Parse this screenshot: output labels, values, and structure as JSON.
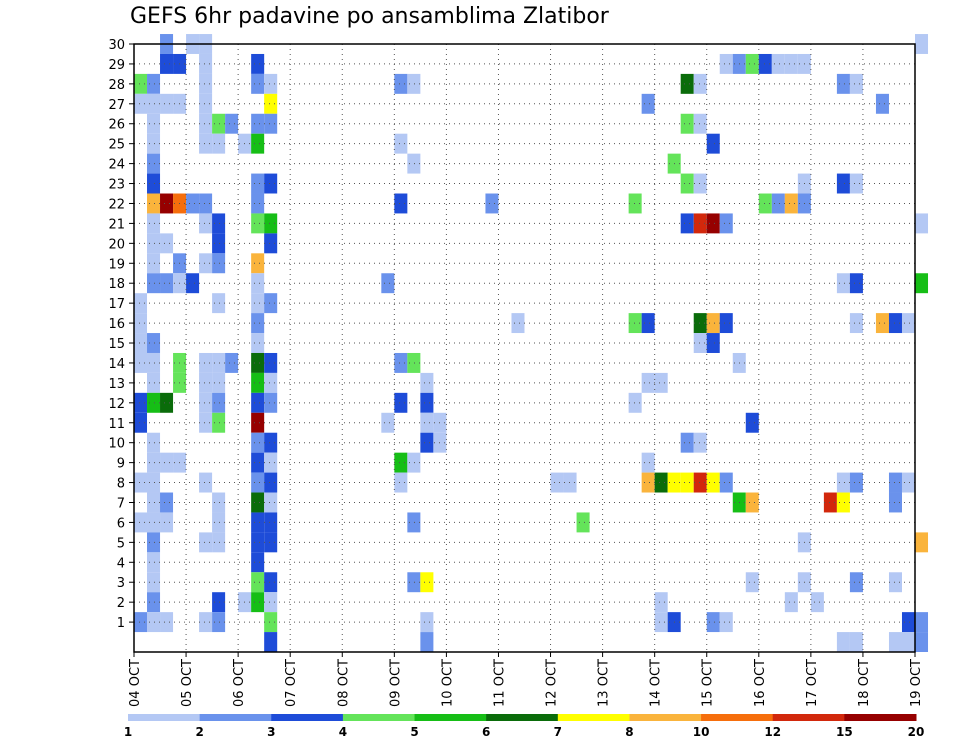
{
  "chart_data": {
    "type": "heatmap",
    "title": "GEFS 6hr padavine po ansamblima Zlatibor",
    "xlabel": "",
    "ylabel": "",
    "x_tick_labels": [
      "04 OCT",
      "05 OCT",
      "06 OCT",
      "07 OCT",
      "08 OCT",
      "09 OCT",
      "10 OCT",
      "11 OCT",
      "12 OCT",
      "13 OCT",
      "14 OCT",
      "15 OCT",
      "16 OCT",
      "17 OCT",
      "18 OCT",
      "19 OCT"
    ],
    "y_tick_labels": [
      "1",
      "2",
      "3",
      "4",
      "5",
      "6",
      "7",
      "8",
      "9",
      "10",
      "11",
      "12",
      "13",
      "14",
      "15",
      "16",
      "17",
      "18",
      "19",
      "20",
      "21",
      "22",
      "23",
      "24",
      "25",
      "26",
      "27",
      "28",
      "29",
      "30"
    ],
    "grid": true,
    "color_scale": {
      "levels": [
        "1",
        "2",
        "3",
        "4",
        "5",
        "6",
        "7",
        "8",
        "10",
        "12",
        "15",
        "20"
      ],
      "colors": [
        "#b4c8f4",
        "#6a92ec",
        "#1e4cd8",
        "#64e45a",
        "#16be16",
        "#0a6c0a",
        "#ffff00",
        "#fab43c",
        "#f66e0c",
        "#d2280c",
        "#960000"
      ]
    },
    "cells": [
      [
        30,
        2,
        1
      ],
      [
        30,
        4,
        0
      ],
      [
        30,
        5,
        0
      ],
      [
        30,
        60,
        0
      ],
      [
        29,
        2,
        2
      ],
      [
        29,
        3,
        2
      ],
      [
        29,
        5,
        0
      ],
      [
        29,
        9,
        2
      ],
      [
        29,
        45,
        0
      ],
      [
        29,
        46,
        1
      ],
      [
        29,
        47,
        3
      ],
      [
        29,
        48,
        2
      ],
      [
        29,
        49,
        0
      ],
      [
        29,
        50,
        0
      ],
      [
        29,
        51,
        0
      ],
      [
        28,
        0,
        3
      ],
      [
        28,
        1,
        1
      ],
      [
        28,
        5,
        0
      ],
      [
        28,
        9,
        1
      ],
      [
        28,
        10,
        0
      ],
      [
        28,
        20,
        1
      ],
      [
        28,
        21,
        0
      ],
      [
        28,
        42,
        5
      ],
      [
        28,
        43,
        0
      ],
      [
        28,
        54,
        1
      ],
      [
        28,
        55,
        0
      ],
      [
        27,
        0,
        0
      ],
      [
        27,
        1,
        0
      ],
      [
        27,
        2,
        0
      ],
      [
        27,
        3,
        0
      ],
      [
        27,
        5,
        0
      ],
      [
        27,
        10,
        6
      ],
      [
        27,
        39,
        1
      ],
      [
        27,
        57,
        1
      ],
      [
        26,
        1,
        0
      ],
      [
        26,
        5,
        0
      ],
      [
        26,
        6,
        3
      ],
      [
        26,
        7,
        1
      ],
      [
        26,
        9,
        1
      ],
      [
        26,
        10,
        1
      ],
      [
        26,
        42,
        3
      ],
      [
        26,
        43,
        0
      ],
      [
        25,
        1,
        0
      ],
      [
        25,
        5,
        0
      ],
      [
        25,
        6,
        0
      ],
      [
        25,
        8,
        0
      ],
      [
        25,
        9,
        4
      ],
      [
        25,
        20,
        0
      ],
      [
        25,
        44,
        2
      ],
      [
        24,
        1,
        1
      ],
      [
        24,
        21,
        0
      ],
      [
        24,
        41,
        3
      ],
      [
        23,
        1,
        2
      ],
      [
        23,
        9,
        1
      ],
      [
        23,
        10,
        2
      ],
      [
        23,
        42,
        3
      ],
      [
        23,
        43,
        0
      ],
      [
        23,
        51,
        0
      ],
      [
        23,
        54,
        2
      ],
      [
        23,
        55,
        0
      ],
      [
        22,
        1,
        7
      ],
      [
        22,
        2,
        10
      ],
      [
        22,
        3,
        8
      ],
      [
        22,
        4,
        1
      ],
      [
        22,
        5,
        1
      ],
      [
        22,
        9,
        1
      ],
      [
        22,
        20,
        2
      ],
      [
        22,
        27,
        1
      ],
      [
        22,
        38,
        3
      ],
      [
        22,
        48,
        3
      ],
      [
        22,
        49,
        1
      ],
      [
        22,
        50,
        7
      ],
      [
        22,
        51,
        1
      ],
      [
        21,
        1,
        0
      ],
      [
        21,
        5,
        0
      ],
      [
        21,
        6,
        2
      ],
      [
        21,
        9,
        3
      ],
      [
        21,
        10,
        4
      ],
      [
        21,
        42,
        2
      ],
      [
        21,
        43,
        9
      ],
      [
        21,
        44,
        10
      ],
      [
        21,
        45,
        1
      ],
      [
        21,
        60,
        0
      ],
      [
        20,
        1,
        0
      ],
      [
        20,
        2,
        0
      ],
      [
        20,
        6,
        2
      ],
      [
        20,
        10,
        2
      ],
      [
        19,
        1,
        0
      ],
      [
        19,
        3,
        1
      ],
      [
        19,
        5,
        0
      ],
      [
        19,
        6,
        1
      ],
      [
        19,
        9,
        7
      ],
      [
        18,
        1,
        1
      ],
      [
        18,
        2,
        1
      ],
      [
        18,
        3,
        0
      ],
      [
        18,
        4,
        2
      ],
      [
        18,
        9,
        0
      ],
      [
        18,
        19,
        1
      ],
      [
        18,
        54,
        0
      ],
      [
        18,
        55,
        2
      ],
      [
        18,
        60,
        4
      ],
      [
        17,
        0,
        0
      ],
      [
        17,
        6,
        0
      ],
      [
        17,
        9,
        0
      ],
      [
        17,
        10,
        1
      ],
      [
        16,
        0,
        0
      ],
      [
        16,
        9,
        1
      ],
      [
        16,
        29,
        0
      ],
      [
        16,
        38,
        3
      ],
      [
        16,
        39,
        2
      ],
      [
        16,
        43,
        5
      ],
      [
        16,
        44,
        7
      ],
      [
        16,
        45,
        2
      ],
      [
        16,
        55,
        0
      ],
      [
        16,
        57,
        7
      ],
      [
        16,
        58,
        2
      ],
      [
        16,
        59,
        0
      ],
      [
        15,
        0,
        0
      ],
      [
        15,
        1,
        1
      ],
      [
        15,
        9,
        0
      ],
      [
        15,
        43,
        0
      ],
      [
        15,
        44,
        2
      ],
      [
        14,
        0,
        0
      ],
      [
        14,
        1,
        0
      ],
      [
        14,
        3,
        3
      ],
      [
        14,
        5,
        0
      ],
      [
        14,
        6,
        0
      ],
      [
        14,
        7,
        1
      ],
      [
        14,
        9,
        5
      ],
      [
        14,
        10,
        2
      ],
      [
        14,
        20,
        1
      ],
      [
        14,
        21,
        3
      ],
      [
        14,
        46,
        0
      ],
      [
        13,
        1,
        0
      ],
      [
        13,
        3,
        3
      ],
      [
        13,
        5,
        0
      ],
      [
        13,
        6,
        0
      ],
      [
        13,
        9,
        4
      ],
      [
        13,
        10,
        0
      ],
      [
        13,
        22,
        0
      ],
      [
        13,
        39,
        0
      ],
      [
        13,
        40,
        0
      ],
      [
        12,
        0,
        2
      ],
      [
        12,
        1,
        4
      ],
      [
        12,
        2,
        5
      ],
      [
        12,
        5,
        0
      ],
      [
        12,
        6,
        1
      ],
      [
        12,
        9,
        2
      ],
      [
        12,
        10,
        1
      ],
      [
        12,
        20,
        2
      ],
      [
        12,
        22,
        2
      ],
      [
        12,
        38,
        0
      ],
      [
        11,
        0,
        2
      ],
      [
        11,
        5,
        0
      ],
      [
        11,
        6,
        3
      ],
      [
        11,
        9,
        10
      ],
      [
        11,
        19,
        0
      ],
      [
        11,
        22,
        0
      ],
      [
        11,
        23,
        0
      ],
      [
        11,
        47,
        2
      ],
      [
        10,
        1,
        0
      ],
      [
        10,
        9,
        1
      ],
      [
        10,
        10,
        2
      ],
      [
        10,
        22,
        2
      ],
      [
        10,
        23,
        0
      ],
      [
        10,
        42,
        1
      ],
      [
        10,
        43,
        0
      ],
      [
        9,
        1,
        0
      ],
      [
        9,
        2,
        0
      ],
      [
        9,
        3,
        0
      ],
      [
        9,
        9,
        2
      ],
      [
        9,
        10,
        0
      ],
      [
        9,
        20,
        4
      ],
      [
        9,
        21,
        0
      ],
      [
        9,
        39,
        0
      ],
      [
        8,
        0,
        0
      ],
      [
        8,
        1,
        0
      ],
      [
        8,
        5,
        0
      ],
      [
        8,
        9,
        1
      ],
      [
        8,
        10,
        2
      ],
      [
        8,
        20,
        0
      ],
      [
        8,
        32,
        0
      ],
      [
        8,
        33,
        0
      ],
      [
        8,
        39,
        7
      ],
      [
        8,
        40,
        5
      ],
      [
        8,
        41,
        6
      ],
      [
        8,
        42,
        6
      ],
      [
        8,
        43,
        9
      ],
      [
        8,
        44,
        6
      ],
      [
        8,
        45,
        1
      ],
      [
        8,
        54,
        0
      ],
      [
        8,
        55,
        1
      ],
      [
        8,
        58,
        1
      ],
      [
        8,
        59,
        0
      ],
      [
        7,
        1,
        0
      ],
      [
        7,
        2,
        1
      ],
      [
        7,
        6,
        0
      ],
      [
        7,
        9,
        5
      ],
      [
        7,
        10,
        0
      ],
      [
        7,
        46,
        4
      ],
      [
        7,
        47,
        7
      ],
      [
        7,
        53,
        9
      ],
      [
        7,
        54,
        6
      ],
      [
        7,
        58,
        1
      ],
      [
        6,
        0,
        0
      ],
      [
        6,
        1,
        0
      ],
      [
        6,
        2,
        0
      ],
      [
        6,
        6,
        0
      ],
      [
        6,
        9,
        2
      ],
      [
        6,
        10,
        2
      ],
      [
        6,
        21,
        1
      ],
      [
        6,
        34,
        3
      ],
      [
        5,
        1,
        1
      ],
      [
        5,
        5,
        0
      ],
      [
        5,
        6,
        0
      ],
      [
        5,
        9,
        2
      ],
      [
        5,
        10,
        2
      ],
      [
        5,
        51,
        0
      ],
      [
        5,
        60,
        7
      ],
      [
        4,
        1,
        0
      ],
      [
        4,
        9,
        2
      ],
      [
        3,
        1,
        0
      ],
      [
        3,
        9,
        3
      ],
      [
        3,
        10,
        2
      ],
      [
        3,
        21,
        1
      ],
      [
        3,
        22,
        6
      ],
      [
        3,
        47,
        0
      ],
      [
        3,
        51,
        0
      ],
      [
        3,
        55,
        1
      ],
      [
        3,
        58,
        0
      ],
      [
        2,
        1,
        1
      ],
      [
        2,
        6,
        2
      ],
      [
        2,
        8,
        0
      ],
      [
        2,
        9,
        4
      ],
      [
        2,
        10,
        0
      ],
      [
        2,
        40,
        0
      ],
      [
        2,
        50,
        0
      ],
      [
        2,
        52,
        0
      ],
      [
        1,
        0,
        1
      ],
      [
        1,
        1,
        0
      ],
      [
        1,
        2,
        0
      ],
      [
        1,
        5,
        0
      ],
      [
        1,
        6,
        1
      ],
      [
        1,
        10,
        3
      ],
      [
        1,
        22,
        0
      ],
      [
        1,
        40,
        0
      ],
      [
        1,
        41,
        2
      ],
      [
        1,
        44,
        1
      ],
      [
        1,
        45,
        0
      ],
      [
        1,
        59,
        2
      ],
      [
        1,
        60,
        1
      ],
      [
        0,
        10,
        2
      ],
      [
        0,
        22,
        1
      ],
      [
        0,
        54,
        0
      ],
      [
        0,
        55,
        0
      ],
      [
        0,
        58,
        0
      ],
      [
        0,
        59,
        0
      ],
      [
        0,
        60,
        1
      ]
    ]
  }
}
